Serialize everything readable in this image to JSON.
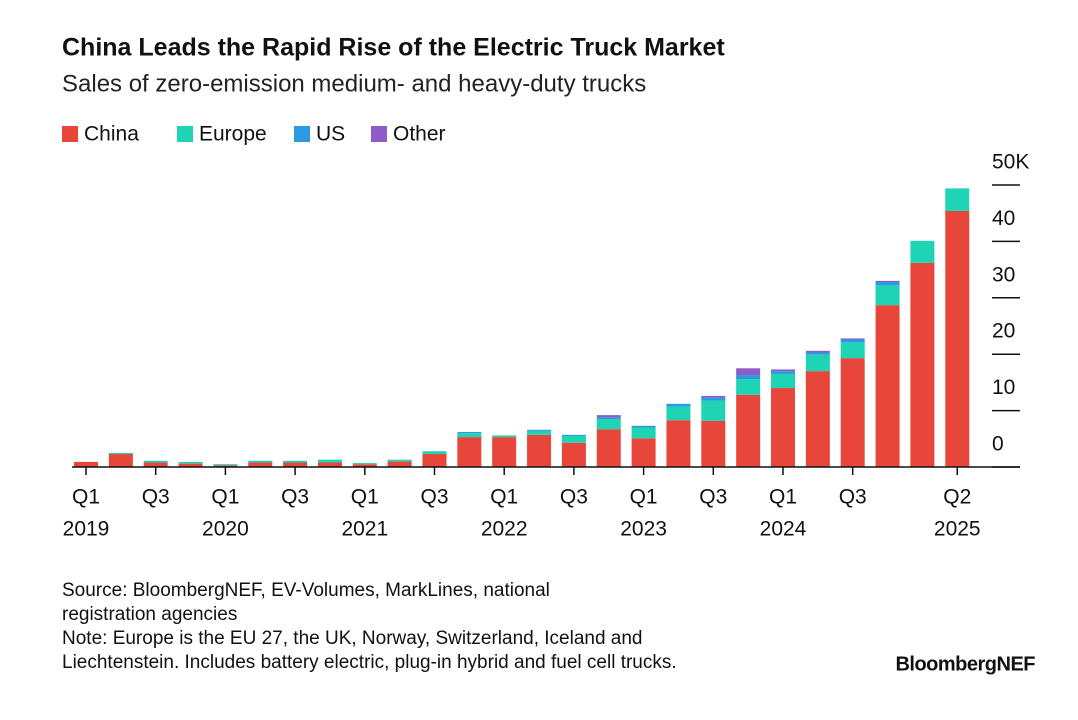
{
  "chart_data": {
    "type": "stacked_bar",
    "title": "China Leads the Rapid Rise of the Electric Truck Market",
    "subtitle": "Sales of zero-emission medium- and heavy-duty trucks",
    "categories": [
      "Q1",
      null,
      "Q3",
      null,
      "Q1",
      null,
      "Q3",
      null,
      "Q1",
      null,
      "Q3",
      null,
      "Q1",
      null,
      "Q3",
      null,
      "Q1",
      null,
      "Q3",
      null,
      "Q1",
      null,
      "Q3",
      null,
      null,
      "Q2"
    ],
    "years": [
      "2019",
      null,
      null,
      null,
      "2020",
      null,
      null,
      null,
      "2021",
      null,
      null,
      null,
      "2022",
      null,
      null,
      null,
      "2023",
      null,
      null,
      null,
      "2024",
      null,
      null,
      null,
      null,
      "2025"
    ],
    "series": [
      {
        "name": "China",
        "color": "#e8463a",
        "values": [
          0.9,
          2.3,
          0.8,
          0.6,
          0.3,
          0.8,
          0.8,
          0.8,
          0.5,
          1.0,
          2.3,
          5.3,
          5.3,
          5.7,
          4.3,
          6.7,
          5.1,
          8.3,
          8.2,
          12.8,
          14.0,
          17.0,
          19.3,
          28.7,
          36.2,
          45.4
        ]
      },
      {
        "name": "Europe",
        "color": "#1fd4b4",
        "values": [
          0.0,
          0.2,
          0.3,
          0.3,
          0.2,
          0.3,
          0.3,
          0.5,
          0.2,
          0.3,
          0.5,
          0.7,
          0.3,
          0.7,
          1.2,
          1.8,
          1.9,
          2.4,
          3.6,
          2.8,
          2.5,
          2.9,
          2.8,
          3.5,
          3.9,
          4.0
        ]
      },
      {
        "name": "US",
        "color": "#2a9be0",
        "values": [
          0,
          0,
          0,
          0,
          0,
          0,
          0,
          0,
          0,
          0,
          0,
          0.2,
          0,
          0.2,
          0.2,
          0.3,
          0.3,
          0.5,
          0.5,
          0.7,
          0.5,
          0.4,
          0.5,
          0.6,
          0,
          0
        ]
      },
      {
        "name": "Other",
        "color": "#8e5cc8",
        "values": [
          0,
          0,
          0,
          0,
          0,
          0,
          0,
          0,
          0,
          0,
          0,
          0,
          0,
          0,
          0,
          0.4,
          0,
          0,
          0.3,
          1.2,
          0.3,
          0.3,
          0.2,
          0.2,
          0,
          0
        ]
      }
    ],
    "ylim": [
      0,
      50
    ],
    "yticks": [
      0,
      10,
      20,
      30,
      40,
      {
        "value": 50,
        "label": "50K"
      }
    ],
    "source": [
      "Source: BloombergNEF, EV-Volumes, MarkLines, national",
      "registration agencies"
    ],
    "note": [
      "Note: Europe is the EU 27, the UK, Norway, Switzerland, Iceland and",
      "Liechtenstein. Includes battery electric, plug-in hybrid and fuel cell trucks."
    ],
    "brand": "BloombergNEF"
  }
}
